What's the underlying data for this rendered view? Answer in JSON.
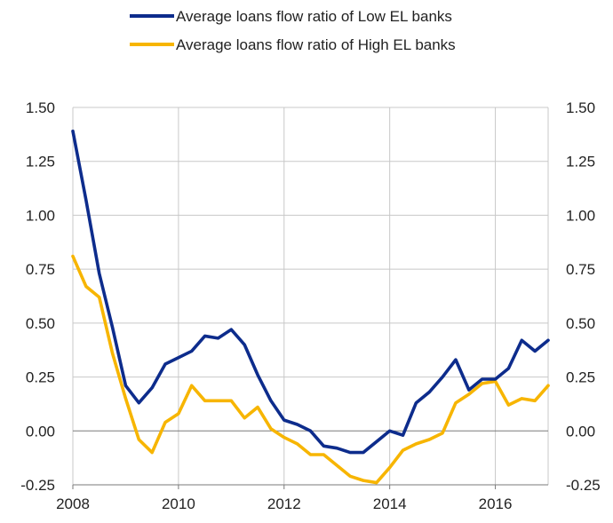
{
  "chart_data": {
    "type": "line",
    "title": "",
    "xlabel": "",
    "ylabel": "",
    "grid": true,
    "legend_position": "top-center",
    "xlim": [
      2008,
      2017
    ],
    "ylim": [
      -0.25,
      1.5
    ],
    "x_ticks": [
      2008,
      2010,
      2012,
      2014,
      2016
    ],
    "x_tick_labels": [
      "2008",
      "2010",
      "2012",
      "2014",
      "2016"
    ],
    "y_ticks": [
      -0.25,
      0,
      0.25,
      0.5,
      0.75,
      1.0,
      1.25,
      1.5
    ],
    "y_tick_labels": [
      "-0.25",
      "0.00",
      "0.25",
      "0.50",
      "0.75",
      "1.00",
      "1.25",
      "1.50"
    ],
    "x": [
      2008.0,
      2008.25,
      2008.5,
      2008.75,
      2009.0,
      2009.25,
      2009.5,
      2009.75,
      2010.0,
      2010.25,
      2010.5,
      2010.75,
      2011.0,
      2011.25,
      2011.5,
      2011.75,
      2012.0,
      2012.25,
      2012.5,
      2012.75,
      2013.0,
      2013.25,
      2013.5,
      2013.75,
      2014.0,
      2014.25,
      2014.5,
      2014.75,
      2015.0,
      2015.25,
      2015.5,
      2015.75,
      2016.0,
      2016.25,
      2016.5,
      2016.75,
      2017.0
    ],
    "series": [
      {
        "name": "Average loans flow ratio of Low EL banks",
        "color": "#0d2c8c",
        "values": [
          1.39,
          1.07,
          0.73,
          0.48,
          0.21,
          0.13,
          0.2,
          0.31,
          0.34,
          0.37,
          0.44,
          0.43,
          0.47,
          0.4,
          0.26,
          0.14,
          0.05,
          0.03,
          0.0,
          -0.07,
          -0.08,
          -0.1,
          -0.1,
          -0.05,
          0.0,
          -0.02,
          0.13,
          0.18,
          0.25,
          0.33,
          0.19,
          0.24,
          0.24,
          0.29,
          0.42,
          0.37,
          0.42
        ]
      },
      {
        "name": "Average loans flow ratio of High EL banks",
        "color": "#f7b500",
        "values": [
          0.81,
          0.67,
          0.62,
          0.36,
          0.15,
          -0.04,
          -0.1,
          0.04,
          0.08,
          0.21,
          0.14,
          0.14,
          0.14,
          0.06,
          0.11,
          0.01,
          -0.03,
          -0.06,
          -0.11,
          -0.11,
          -0.16,
          -0.21,
          -0.23,
          -0.24,
          -0.17,
          -0.09,
          -0.06,
          -0.04,
          -0.01,
          0.13,
          0.17,
          0.22,
          0.23,
          0.12,
          0.15,
          0.14,
          0.21
        ]
      }
    ]
  }
}
